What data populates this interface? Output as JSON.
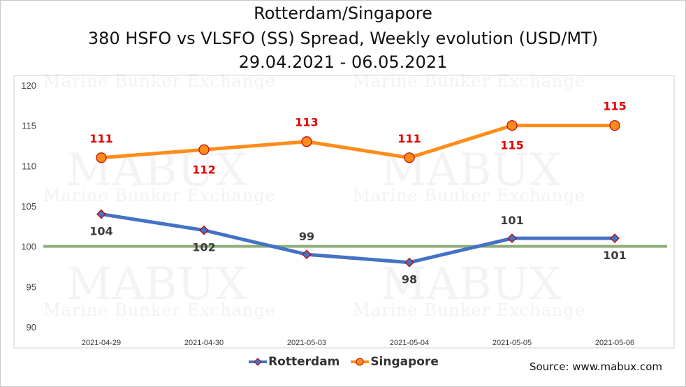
{
  "title_lines": [
    "Rotterdam/Singapore",
    "380 HSFO vs VLSFO (SS) Spread, Weekly evolution (USD/MT)",
    "29.04.2021 - 06.05.2021"
  ],
  "watermark": {
    "brand": "MABUX",
    "tagline": "Marine Bunker Exchange"
  },
  "source": "Source: www.mabux.com",
  "colors": {
    "rotterdam_line": "#4472c4",
    "rotterdam_marker": "#4472c4",
    "rotterdam_marker_border": "#c00000",
    "singapore_line": "#ff8c1a",
    "singapore_marker": "#ff8c1a",
    "singapore_marker_border": "#c00000",
    "reference_line": "#8fae7a",
    "singapore_labels": "#e00000",
    "rotterdam_labels": "#3c3c3c"
  },
  "chart_data": {
    "type": "line",
    "title": "Rotterdam/Singapore 380 HSFO vs VLSFO (SS) Spread, Weekly evolution (USD/MT) 29.04.2021 - 06.05.2021",
    "categories": [
      "2021-04-29",
      "2021-04-30",
      "2021-05-03",
      "2021-05-04",
      "2021-05-05",
      "2021-05-06"
    ],
    "series": [
      {
        "name": "Rotterdam",
        "values": [
          104,
          102,
          99,
          98,
          101,
          101
        ],
        "marker": "diamond"
      },
      {
        "name": "Singapore",
        "values": [
          111,
          112,
          113,
          111,
          115,
          115
        ],
        "marker": "circle"
      }
    ],
    "reference_line": 100,
    "ylim": [
      90,
      120
    ],
    "yticks": [
      90,
      95,
      100,
      105,
      110,
      115,
      120
    ],
    "xlabel": "",
    "ylabel": "",
    "grid": false,
    "legend": "bottom-center",
    "data_labels": true
  }
}
